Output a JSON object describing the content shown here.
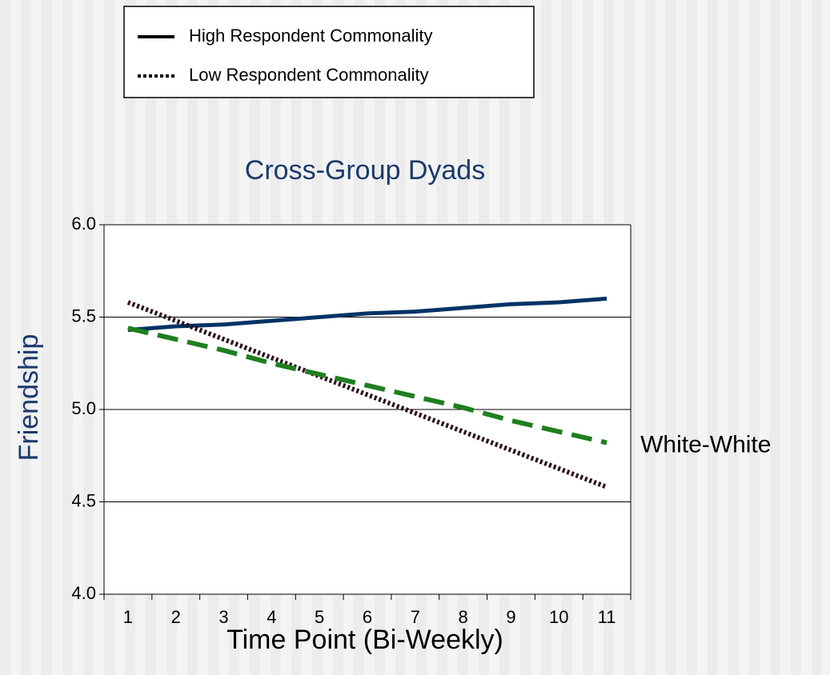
{
  "chart_data": {
    "type": "line",
    "title": "Cross-Group Dyads",
    "xlabel": "Time Point (Bi-Weekly)",
    "ylabel": "Friendship",
    "categories": [
      "1",
      "2",
      "3",
      "4",
      "5",
      "6",
      "7",
      "8",
      "9",
      "10",
      "11"
    ],
    "series": [
      {
        "name": "High Respondent Commonality",
        "color": "#003366",
        "style": "solid",
        "legend": true,
        "values": [
          5.43,
          5.45,
          5.46,
          5.48,
          5.5,
          5.52,
          5.53,
          5.55,
          5.57,
          5.58,
          5.6
        ]
      },
      {
        "name": "Low Respondent Commonality",
        "color": "#2a0a1e",
        "style": "dotted",
        "legend": true,
        "values": [
          5.58,
          5.48,
          5.38,
          5.28,
          5.18,
          5.08,
          4.98,
          4.88,
          4.78,
          4.68,
          4.58
        ]
      },
      {
        "name": "White-White",
        "color": "#1f7f1f",
        "style": "dashed",
        "legend": false,
        "values": [
          5.44,
          5.38,
          5.32,
          5.25,
          5.19,
          5.13,
          5.07,
          5.01,
          4.94,
          4.88,
          4.82
        ]
      }
    ],
    "ylim": [
      4,
      6
    ],
    "yticks": [
      {
        "value": 4,
        "label": "4.0"
      },
      {
        "value": 4.5,
        "label": "4.5"
      },
      {
        "value": 5,
        "label": "5.0"
      },
      {
        "value": 5.5,
        "label": "5.5"
      },
      {
        "value": 6,
        "label": "6.0"
      }
    ],
    "grid": true
  }
}
